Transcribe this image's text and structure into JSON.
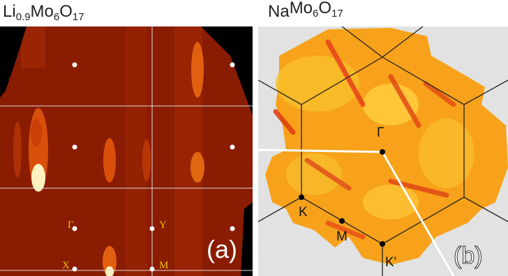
{
  "panels": [
    {
      "title": [
        [
          "Li",
          "0.9"
        ],
        [
          "Mo",
          "6"
        ],
        [
          "O",
          "17"
        ]
      ],
      "label": "(a)",
      "points": [
        "Γ",
        "Y",
        "X",
        "M"
      ]
    },
    {
      "title": [
        [
          "Na",
          ""
        ],
        [
          "Mo",
          "6"
        ],
        [
          "O",
          "17"
        ]
      ],
      "label": "(b)",
      "points": [
        "Γ",
        "K",
        "M",
        "K'"
      ]
    }
  ]
}
